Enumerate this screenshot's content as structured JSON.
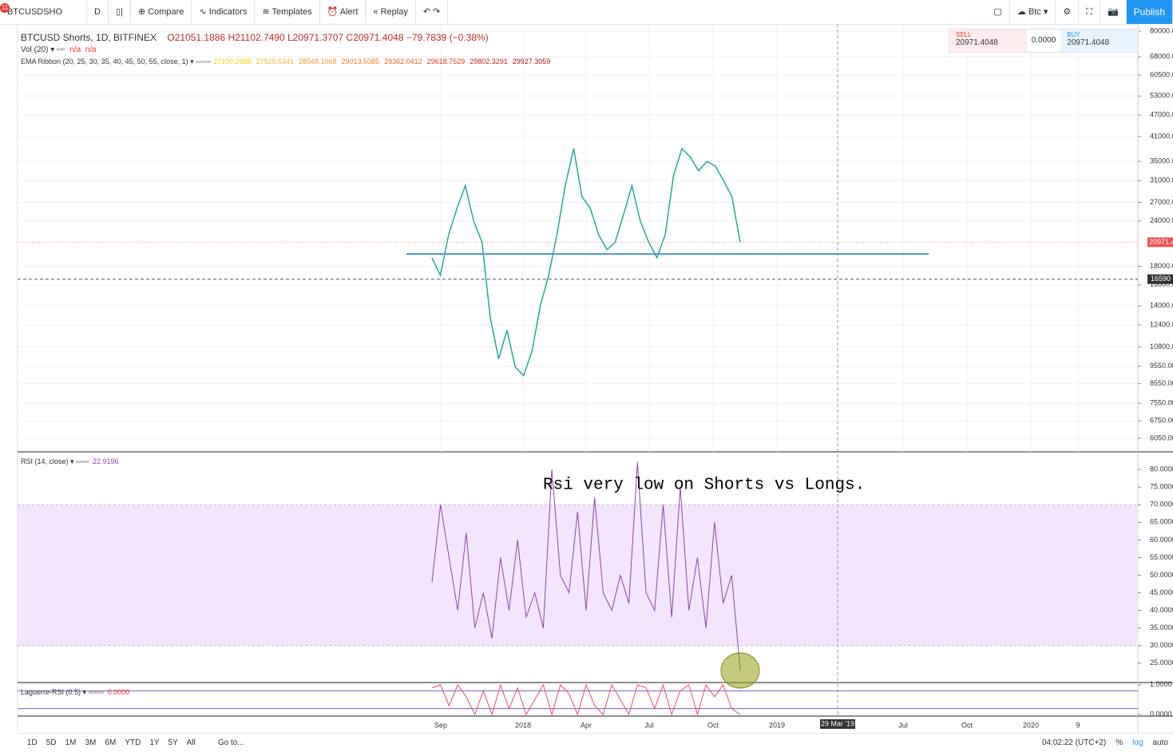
{
  "toolbar": {
    "badge": "11",
    "symbol": "BTCUSDSHO",
    "interval": "D",
    "compare": "Compare",
    "indicators": "Indicators",
    "templates": "Templates",
    "alert": "Alert",
    "replay": "Replay",
    "currency": "Btc",
    "publish": "Publish"
  },
  "trade": {
    "sell_label": "SELL",
    "sell_price": "20971.4048",
    "spread": "0.0000",
    "buy_label": "BUY",
    "buy_price": "20971.4048"
  },
  "legend": {
    "title": "BTCUSD Shorts, 1D, BITFINEX",
    "open": "O21051.1886",
    "high": "H21102.7490",
    "low": "L20971.3707",
    "close": "C20971.4048",
    "change": "−79.7839 (−0.38%)",
    "vol": "Vol (20)",
    "vol_values": [
      "n/a",
      "n/a"
    ],
    "ema": "EMA Ribbon (20, 25, 30, 35, 40, 45, 50, 55, close, 1)",
    "ema_values": [
      "27100.2988",
      "27929.6341",
      "28548.1068",
      "29013.5085",
      "29362.0412",
      "29618.7529",
      "29802.3291",
      "29927.3059"
    ],
    "ema_colors": [
      "#f5d400",
      "#f2b830",
      "#ef9a2a",
      "#e87d28",
      "#de5e24",
      "#d0421f",
      "#b92a1a",
      "#9b1515"
    ],
    "rsi": "RSI (14, close)",
    "rsi_value": "22.9196",
    "laguerre": "Laguerre-RSI (0.5)",
    "laguerre_value": "0.0000"
  },
  "annotation": "Rsi very low on Shorts vs Longs.",
  "chart_data": [
    {
      "type": "line",
      "log_scale": true,
      "color": "#26a69a",
      "values": [
        19000,
        17000,
        22000,
        26000,
        30000,
        24000,
        21000,
        13000,
        10000,
        12000,
        9500,
        9000,
        10500,
        14000,
        17000,
        22000,
        30000,
        38000,
        28000,
        26000,
        22000,
        20000,
        21000,
        25000,
        30000,
        24000,
        21000,
        19000,
        22000,
        32000,
        38000,
        36000,
        33000,
        35000,
        34000,
        31000,
        28000,
        20971
      ],
      "ylim": [
        5550,
        83700
      ],
      "yticks": [
        {
          "value": 80000,
          "label": "80000.0"
        },
        {
          "value": 68000,
          "label": "68000.0"
        },
        {
          "value": 60500,
          "label": "60500.0"
        },
        {
          "value": 53000,
          "label": "53000.0"
        },
        {
          "value": 47000,
          "label": "47000.0"
        },
        {
          "value": 41000,
          "label": "41000.0"
        },
        {
          "value": 35000,
          "label": "35000.0"
        },
        {
          "value": 31000,
          "label": "31000.0"
        },
        {
          "value": 27000,
          "label": "27000.0"
        },
        {
          "value": 24000,
          "label": "24000.0"
        },
        {
          "value": 18000,
          "label": "18000.0"
        },
        {
          "value": 16000,
          "label": "16000.0"
        },
        {
          "value": 14000,
          "label": "14000.0"
        },
        {
          "value": 12400,
          "label": "12400.0"
        },
        {
          "value": 10800,
          "label": "10800.0"
        },
        {
          "value": 9550,
          "label": "9550.00"
        },
        {
          "value": 8550,
          "label": "8550.00"
        },
        {
          "value": 7550,
          "label": "7550.00"
        },
        {
          "value": 6750,
          "label": "6750.00"
        },
        {
          "value": 6050,
          "label": "6050.00"
        }
      ],
      "last_price": {
        "value": 20971.4,
        "label": "20971.4"
      },
      "crosshair_price": 16590,
      "hline": 19470
    },
    {
      "type": "line",
      "color": "#8e44ad",
      "values": [
        48,
        70,
        55,
        40,
        62,
        35,
        45,
        32,
        55,
        40,
        60,
        38,
        45,
        35,
        80,
        50,
        45,
        68,
        40,
        72,
        45,
        40,
        50,
        42,
        82,
        45,
        40,
        70,
        38,
        75,
        40,
        55,
        35,
        65,
        42,
        50,
        22.9196
      ],
      "ylim": [
        19.5,
        84.8
      ],
      "band": [
        30,
        70
      ],
      "yticks": [
        {
          "value": 80,
          "label": "80.0000"
        },
        {
          "value": 75,
          "label": "75.0000"
        },
        {
          "value": 70,
          "label": "70.0000"
        },
        {
          "value": 65,
          "label": "65.0000"
        },
        {
          "value": 60,
          "label": "60.0000"
        },
        {
          "value": 55,
          "label": "55.0000"
        },
        {
          "value": 50,
          "label": "50.0000"
        },
        {
          "value": 45,
          "label": "45.0000"
        },
        {
          "value": 40,
          "label": "40.0000"
        },
        {
          "value": 35,
          "label": "35.0000"
        },
        {
          "value": 30,
          "label": "30.0000"
        },
        {
          "value": 25,
          "label": "25.0000"
        }
      ]
    },
    {
      "type": "line",
      "color": "#e5506a",
      "values": [
        0.9,
        1,
        0.3,
        1,
        0.6,
        0,
        0.8,
        0,
        1,
        0.2,
        0.9,
        0,
        0.5,
        1,
        0,
        1,
        0.7,
        0,
        1,
        0.3,
        0,
        1,
        0.5,
        0,
        1,
        0.9,
        0.2,
        1,
        0,
        0.8,
        1,
        0,
        1,
        0.6,
        1,
        0.2,
        0
      ],
      "ylim": [
        -0.05,
        1.05
      ],
      "levels": [
        0.8,
        0.2
      ],
      "yticks": [
        {
          "value": 1,
          "label": "1.0000"
        },
        {
          "value": 0,
          "label": "0.0000"
        }
      ]
    }
  ],
  "time_axis": {
    "labels": [
      "Sep",
      "2018",
      "Apr",
      "Jul",
      "Oct",
      "2019",
      "Jul",
      "Oct",
      "2020",
      "9"
    ],
    "crosshair": "29 Mar '19"
  },
  "bottom_bar": {
    "ranges": [
      "1D",
      "5D",
      "1M",
      "3M",
      "6M",
      "YTD",
      "1Y",
      "5Y",
      "All"
    ],
    "goto": "Go to...",
    "clock": "04:02:22 (UTC+2)",
    "percent": "%",
    "log": "log",
    "auto": "auto"
  }
}
